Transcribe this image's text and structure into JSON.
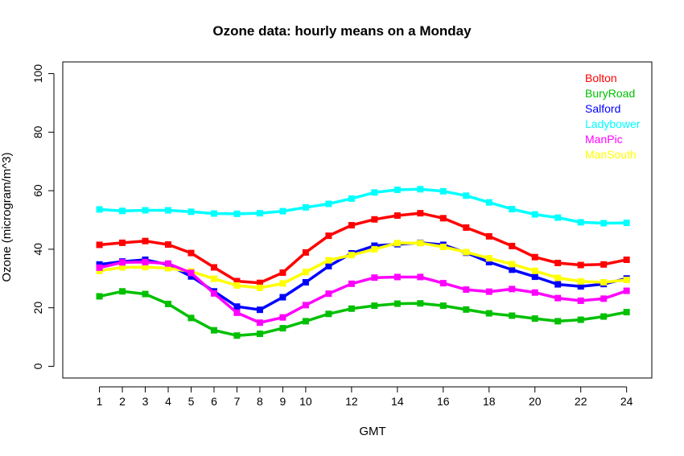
{
  "chart_data": {
    "type": "line",
    "title": "Ozone data: hourly means on a Monday",
    "xlabel": "GMT",
    "ylabel": "Ozone (microgram/m^3)",
    "x": [
      1,
      2,
      3,
      4,
      5,
      6,
      7,
      8,
      9,
      10,
      11,
      12,
      13,
      14,
      15,
      16,
      17,
      18,
      19,
      20,
      21,
      22,
      23,
      24
    ],
    "xticks": [
      1,
      2,
      3,
      4,
      5,
      6,
      7,
      8,
      9,
      10,
      12,
      14,
      16,
      18,
      20,
      22,
      24
    ],
    "yticks": [
      0,
      20,
      40,
      60,
      80,
      100
    ],
    "xlim": [
      -0.6,
      25.1
    ],
    "ylim": [
      -4,
      104
    ],
    "legend_position": "top-right",
    "marker": "square",
    "series": [
      {
        "name": "Ladybower",
        "color": "#00FFFF",
        "values": [
          53.6,
          53.1,
          53.3,
          53.3,
          52.8,
          52.2,
          52.1,
          52.3,
          53.0,
          54.3,
          55.5,
          57.3,
          59.4,
          60.3,
          60.5,
          59.8,
          58.3,
          56.0,
          53.7,
          51.9,
          50.8,
          49.2,
          48.9,
          49.0
        ]
      },
      {
        "name": "Bolton",
        "color": "#FF0000",
        "values": [
          41.5,
          42.2,
          42.8,
          41.6,
          38.7,
          33.8,
          29.1,
          28.5,
          32.0,
          38.9,
          44.6,
          48.2,
          50.2,
          51.5,
          52.3,
          50.6,
          47.4,
          44.4,
          41.1,
          37.3,
          35.3,
          34.6,
          34.8,
          36.4
        ]
      },
      {
        "name": "Salford",
        "color": "#0000FF",
        "values": [
          34.8,
          35.8,
          36.4,
          34.7,
          30.7,
          25.6,
          20.4,
          19.3,
          23.6,
          28.7,
          34.2,
          38.6,
          41.2,
          41.7,
          42.2,
          41.5,
          38.8,
          35.6,
          33.0,
          30.6,
          28.0,
          27.3,
          28.1,
          30.0
        ]
      },
      {
        "name": "ManSouth",
        "color": "#FFFF00",
        "values": [
          32.6,
          33.8,
          33.9,
          33.5,
          32.4,
          29.9,
          27.6,
          26.8,
          28.3,
          32.2,
          36.2,
          38.0,
          40.0,
          42.1,
          42.1,
          40.8,
          39.0,
          36.9,
          34.9,
          32.6,
          30.2,
          29.0,
          28.7,
          29.5
        ]
      },
      {
        "name": "ManPic",
        "color": "#FF00FF",
        "values": [
          33.7,
          35.5,
          35.6,
          35.1,
          31.9,
          24.9,
          18.3,
          14.9,
          16.7,
          20.9,
          24.8,
          28.2,
          30.3,
          30.5,
          30.5,
          28.4,
          26.2,
          25.5,
          26.4,
          25.2,
          23.3,
          22.4,
          23.1,
          25.8
        ]
      },
      {
        "name": "BuryRoad",
        "color": "#00C000",
        "values": [
          23.9,
          25.6,
          24.7,
          21.3,
          16.5,
          12.3,
          10.5,
          11.1,
          13.0,
          15.4,
          17.9,
          19.7,
          20.7,
          21.4,
          21.5,
          20.7,
          19.4,
          18.1,
          17.3,
          16.3,
          15.4,
          15.9,
          17.0,
          18.5
        ]
      }
    ],
    "legend": [
      {
        "name": "Bolton",
        "color": "#FF0000"
      },
      {
        "name": "BuryRoad",
        "color": "#00C000"
      },
      {
        "name": "Salford",
        "color": "#0000FF"
      },
      {
        "name": "Ladybower",
        "color": "#00FFFF"
      },
      {
        "name": "ManPic",
        "color": "#FF00FF"
      },
      {
        "name": "ManSouth",
        "color": "#FFFF00"
      }
    ]
  }
}
